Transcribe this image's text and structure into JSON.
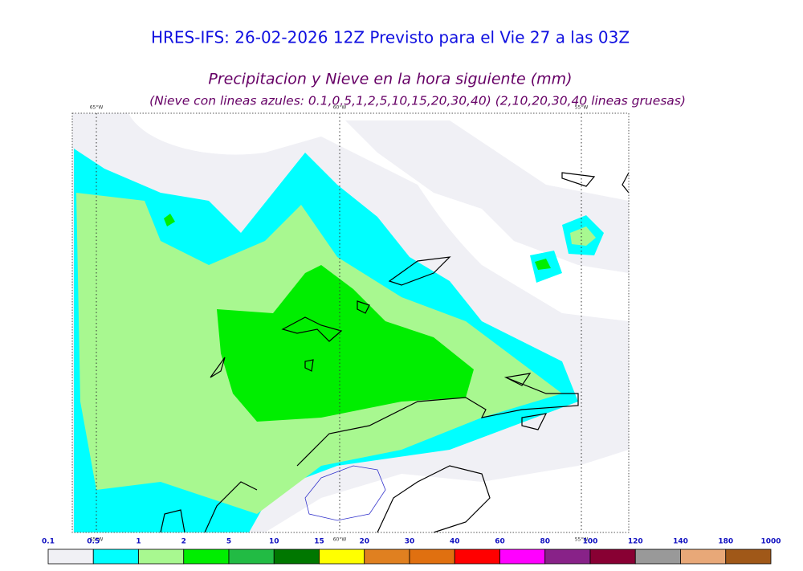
{
  "header": {
    "title": "HRES-IFS: 26-02-2026 12Z Previsto para el Vie 27 a las 03Z",
    "subtitle": "Precipitacion y Nieve en la hora siguiente (mm)",
    "note": "(Nieve con lineas azules: 0.1,0.5,1,2,5,10,15,20,30,40)  (2,10,20,30,40 lineas gruesas)"
  },
  "map": {
    "meridians": [
      "65°W",
      "60°W",
      "55°W"
    ]
  },
  "colorbar": {
    "levels": [
      0.1,
      0.5,
      1,
      2,
      5,
      10,
      15,
      20,
      30,
      40,
      60,
      80,
      100,
      120,
      140,
      180,
      1000
    ],
    "colors": [
      "#f0f0f5",
      "#00ffff",
      "#a8f890",
      "#00ee00",
      "#22bb44",
      "#007700",
      "#ffff00",
      "#e08020",
      "#e07010",
      "#ff0000",
      "#ff00ff",
      "#882288",
      "#880033",
      "#999999",
      "#e8a878",
      "#a05818"
    ]
  }
}
